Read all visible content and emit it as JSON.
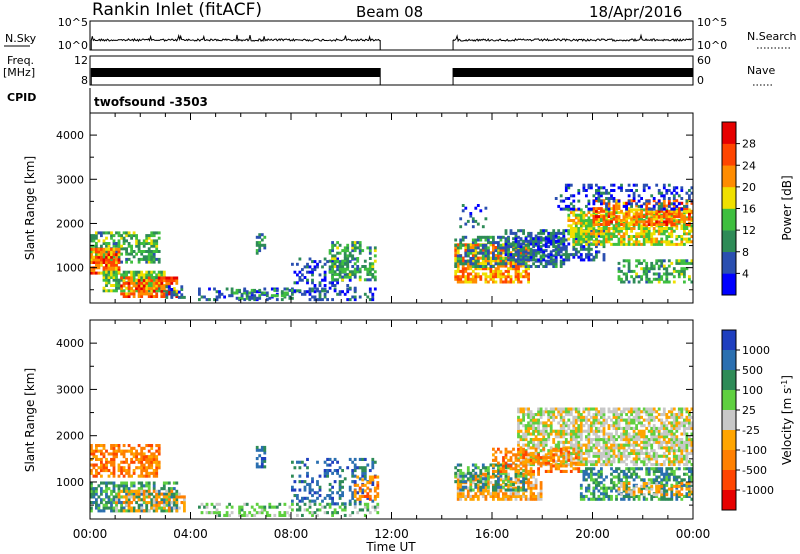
{
  "header": {
    "station": "Rankin Inlet (fitACF)",
    "beam": "Beam 08",
    "date": "18/Apr/2016"
  },
  "noise_panel": {
    "left_label": "N.Sky",
    "left_ticks": [
      "10^5",
      "10^0"
    ],
    "right_label": "N.Search",
    "right_ticks": [
      "10^5",
      "10^0"
    ],
    "right_linestyle": "dotted"
  },
  "freq_panel": {
    "left_label_line1": "Freq.",
    "left_label_line2": "[MHz]",
    "left_ticks": [
      "12",
      "8"
    ],
    "right_label": "Nave",
    "right_ticks": [
      "60",
      "0"
    ],
    "right_linestyle": "dotted"
  },
  "cpid_panel": {
    "label": "CPID",
    "value": "twofsound -3503"
  },
  "xaxis": {
    "label": "Time UT",
    "ticks": [
      "00:00",
      "04:00",
      "08:00",
      "12:00",
      "16:00",
      "20:00",
      "00:00"
    ],
    "range_hours": [
      0,
      24
    ]
  },
  "data_gap_hours": [
    11.55,
    14.45
  ],
  "chart_data": [
    {
      "type": "heatmap",
      "name": "power",
      "ylabel": "Slant Range [km]",
      "yticks": [
        "4000",
        "3000",
        "2000",
        "1000"
      ],
      "ylim": [
        200,
        4500
      ],
      "colorbar": {
        "label": "Power [dB]",
        "ticks": [
          "28",
          "24",
          "20",
          "16",
          "12",
          "8",
          "4"
        ],
        "range": [
          0,
          32
        ],
        "colors": [
          "#0000ff",
          "#2a4fb0",
          "#2e8b57",
          "#3fbf3f",
          "#f0e000",
          "#ff8c00",
          "#ff4500",
          "#e60000"
        ]
      },
      "regions": [
        {
          "t": [
            0.0,
            2.8
          ],
          "r": [
            1100,
            1800
          ],
          "level": 12,
          "density": 0.6
        },
        {
          "t": [
            0.0,
            1.2
          ],
          "r": [
            850,
            1400
          ],
          "level": 24,
          "density": 0.8
        },
        {
          "t": [
            0.5,
            3.0
          ],
          "r": [
            450,
            900
          ],
          "level": 14,
          "density": 0.8
        },
        {
          "t": [
            1.2,
            3.5
          ],
          "r": [
            320,
            750
          ],
          "level": 24,
          "density": 0.7
        },
        {
          "t": [
            3.0,
            3.8
          ],
          "r": [
            300,
            600
          ],
          "level": 6,
          "density": 0.5
        },
        {
          "t": [
            4.3,
            11.4
          ],
          "r": [
            250,
            520
          ],
          "level": 6,
          "density": 0.35
        },
        {
          "t": [
            5.5,
            8.0
          ],
          "r": [
            280,
            480
          ],
          "level": 10,
          "density": 0.3
        },
        {
          "t": [
            6.6,
            6.9
          ],
          "r": [
            1300,
            1750
          ],
          "level": 10,
          "density": 0.45
        },
        {
          "t": [
            8.0,
            10.5
          ],
          "r": [
            450,
            1200
          ],
          "level": 6,
          "density": 0.3
        },
        {
          "t": [
            9.5,
            11.3
          ],
          "r": [
            700,
            1550
          ],
          "level": 12,
          "density": 0.45
        },
        {
          "t": [
            14.5,
            17.5
          ],
          "r": [
            650,
            1500
          ],
          "level": 22,
          "density": 0.7
        },
        {
          "t": [
            14.5,
            19.0
          ],
          "r": [
            1000,
            1700
          ],
          "level": 9,
          "density": 0.5
        },
        {
          "t": [
            16.5,
            20.5
          ],
          "r": [
            1150,
            1850
          ],
          "level": 7,
          "density": 0.55
        },
        {
          "t": [
            19.0,
            24.0
          ],
          "r": [
            1500,
            2300
          ],
          "level": 17,
          "density": 0.7
        },
        {
          "t": [
            20.0,
            24.0
          ],
          "r": [
            1950,
            2500
          ],
          "level": 24,
          "density": 0.55
        },
        {
          "t": [
            18.5,
            24.0
          ],
          "r": [
            2300,
            2900
          ],
          "level": 5,
          "density": 0.3
        },
        {
          "t": [
            21.0,
            24.0
          ],
          "r": [
            650,
            1150
          ],
          "level": 12,
          "density": 0.5
        },
        {
          "t": [
            14.5,
            16.0
          ],
          "r": [
            1900,
            2400
          ],
          "level": 6,
          "density": 0.15
        }
      ]
    },
    {
      "type": "heatmap",
      "name": "velocity",
      "ylabel": "Slant Range [km]",
      "yticks": [
        "4000",
        "3000",
        "2000",
        "1000"
      ],
      "ylim": [
        200,
        4500
      ],
      "colorbar": {
        "label": "Velocity [m s^-1]",
        "ticks": [
          "1000",
          "500",
          "100",
          "25",
          "-25",
          "-100",
          "-500",
          "-1000"
        ],
        "colors": [
          "#1f3fbf",
          "#2a6fb0",
          "#2e8b57",
          "#5fd040",
          "#c8c8c8",
          "#ffa500",
          "#ff8000",
          "#ff4500",
          "#e60000"
        ]
      },
      "regions": [
        {
          "t": [
            0.0,
            2.8
          ],
          "r": [
            1100,
            1800
          ],
          "cls": 6,
          "density": 0.55
        },
        {
          "t": [
            0.0,
            3.5
          ],
          "r": [
            350,
            1000
          ],
          "cls": 2,
          "density": 0.6
        },
        {
          "t": [
            1.0,
            3.8
          ],
          "r": [
            350,
            800
          ],
          "cls": 5,
          "density": 0.4
        },
        {
          "t": [
            4.3,
            11.4
          ],
          "r": [
            250,
            500
          ],
          "cls": 3,
          "density": 0.35
        },
        {
          "t": [
            6.6,
            6.9
          ],
          "r": [
            1300,
            1750
          ],
          "cls": 1,
          "density": 0.45
        },
        {
          "t": [
            8.0,
            11.3
          ],
          "r": [
            500,
            1500
          ],
          "cls": 1,
          "density": 0.3
        },
        {
          "t": [
            10.5,
            11.4
          ],
          "r": [
            600,
            1100
          ],
          "cls": 6,
          "density": 0.5
        },
        {
          "t": [
            14.5,
            18.0
          ],
          "r": [
            600,
            1200
          ],
          "cls": 5,
          "density": 0.65
        },
        {
          "t": [
            14.5,
            17.5
          ],
          "r": [
            800,
            1400
          ],
          "cls": 2,
          "density": 0.45
        },
        {
          "t": [
            17.0,
            24.0
          ],
          "r": [
            1350,
            2600
          ],
          "cls": 4,
          "density": 0.7
        },
        {
          "t": [
            16.0,
            19.5
          ],
          "r": [
            1200,
            1700
          ],
          "cls": 6,
          "density": 0.45
        },
        {
          "t": [
            19.5,
            24.0
          ],
          "r": [
            600,
            1300
          ],
          "cls": 2,
          "density": 0.55
        },
        {
          "t": [
            21.0,
            24.0
          ],
          "r": [
            700,
            1000
          ],
          "cls": 5,
          "density": 0.4
        }
      ]
    }
  ]
}
